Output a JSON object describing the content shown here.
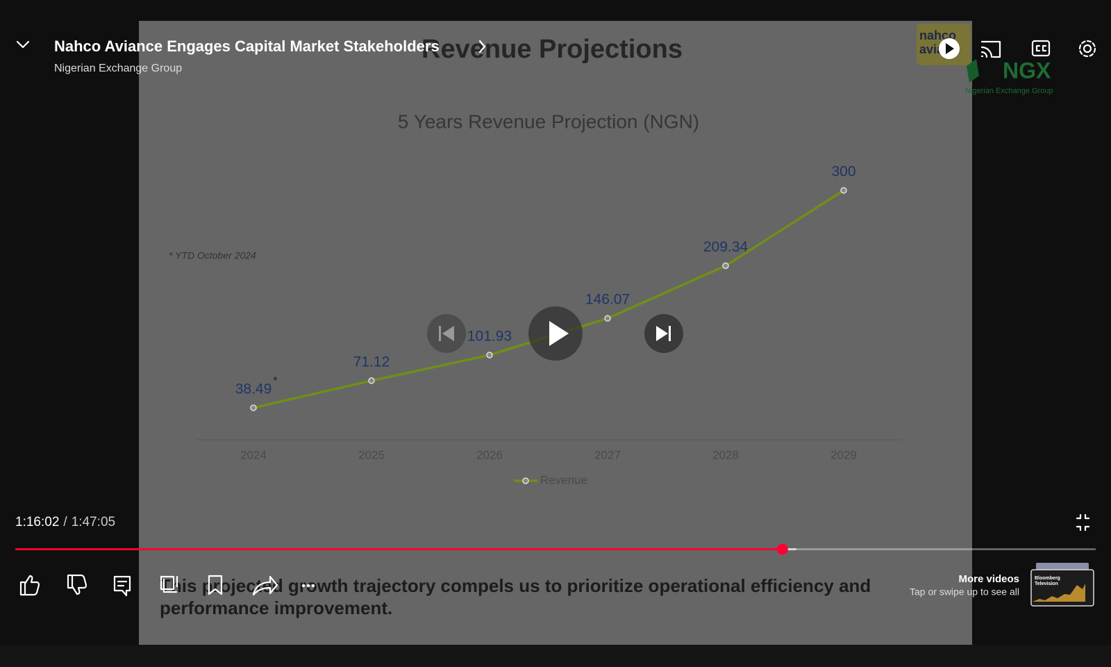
{
  "header": {
    "title": "Nahco Aviance Engages Capital Market Stakeholders",
    "channel": "Nigerian Exchange Group"
  },
  "slide": {
    "title": "Revenue Projections",
    "logo_left": [
      "nahco",
      "avia"
    ],
    "logo_right": {
      "mark": "NGX",
      "name": "Nigerian Exchange Group"
    },
    "caption": [
      "This projected growth trajectory compels us to prioritize operational efficiency and",
      "performance improvement."
    ]
  },
  "chart_data": {
    "type": "line",
    "title": "5 Years Revenue Projection (NGN)",
    "note": "* YTD October 2024",
    "categories": [
      "2024",
      "2025",
      "2026",
      "2027",
      "2028",
      "2029"
    ],
    "series": [
      {
        "name": "Revenue",
        "color": "#6f8f17",
        "values": [
          38.49,
          71.12,
          101.93,
          146.07,
          209.34,
          300
        ]
      }
    ],
    "footnote_marker": "*"
  },
  "player": {
    "current_time": "1:16:02",
    "separator": "/",
    "duration": "1:47:05"
  },
  "more_videos": {
    "title": "More videos",
    "subtitle": "Tap or swipe up to see all",
    "thumbnail_text": [
      "Bloomberg",
      "Television"
    ]
  }
}
